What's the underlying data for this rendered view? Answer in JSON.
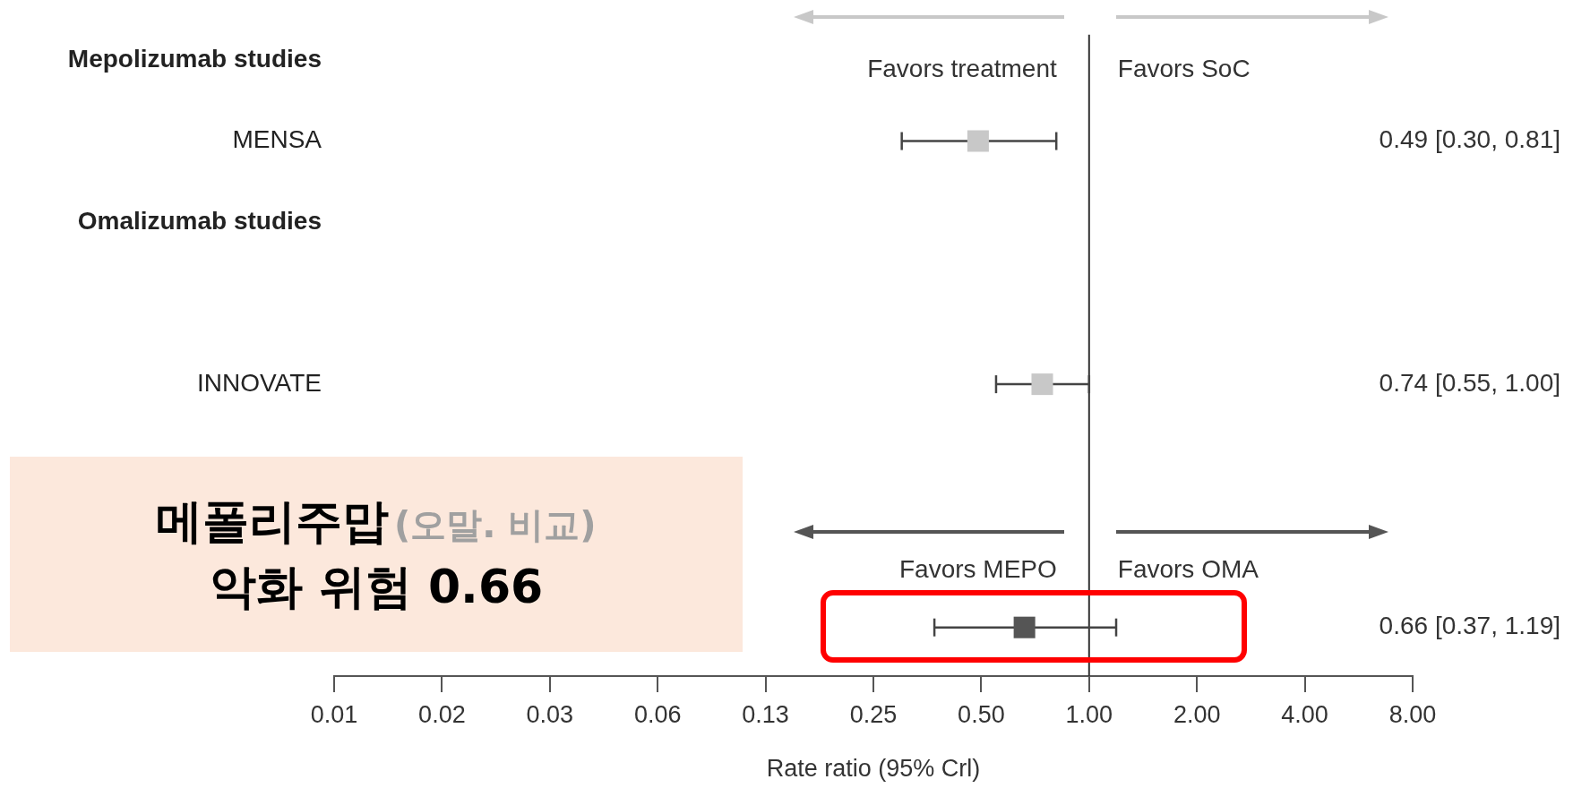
{
  "chart_data": {
    "type": "scatter",
    "orientation": "horizontal",
    "categories": [
      "Mepolizumab studies",
      "MENSA",
      "Omalizumab studies",
      null,
      "INNOVATE",
      null,
      null,
      null
    ],
    "values": [
      null,
      0.49,
      null,
      null,
      0.74,
      null,
      null,
      0.66
    ],
    "errors": [
      null,
      [
        0.3,
        0.81
      ],
      null,
      null,
      [
        0.55,
        1.0
      ],
      null,
      null,
      [
        0.37,
        1.19
      ]
    ],
    "colors": [
      null,
      "#c8c8c8",
      null,
      null,
      "#c8c8c8",
      null,
      null,
      "#555555"
    ],
    "value_labels": [
      null,
      "0.49 [0.30, 0.81]",
      null,
      null,
      "0.74 [0.55, 1.00]",
      null,
      null,
      "0.66 [0.37, 1.19]"
    ],
    "log": "x",
    "xlim": [
      0.0078125,
      8
    ],
    "xticks": [
      {
        "value": 0.0078125,
        "label": "0.01"
      },
      {
        "value": 0.015625,
        "label": "0.02"
      },
      {
        "value": 0.03125,
        "label": "0.03"
      },
      {
        "value": 0.0625,
        "label": "0.06"
      },
      {
        "value": 0.125,
        "label": "0.13"
      },
      0.25,
      {
        "value": 0.5,
        "label": "0.50"
      },
      {
        "value": 1,
        "label": "1.00"
      },
      {
        "value": 2,
        "label": "2.00"
      },
      {
        "value": 4,
        "label": "4.00"
      },
      {
        "value": 8,
        "label": "8.00"
      }
    ],
    "xlabel": "Rate ratio (95% Crl)",
    "ref_lines": [
      {
        "axis": "x",
        "value": 1,
        "color": "#333333"
      }
    ],
    "marker": "square",
    "grid": false,
    "legend": false,
    "annotations": [
      "메폴리주맙",
      "(오말. 비교)",
      "악화 위험 0.66",
      "Favors treatment",
      "Favors SoC",
      "Favors MEPO",
      "Favors OMA"
    ]
  }
}
